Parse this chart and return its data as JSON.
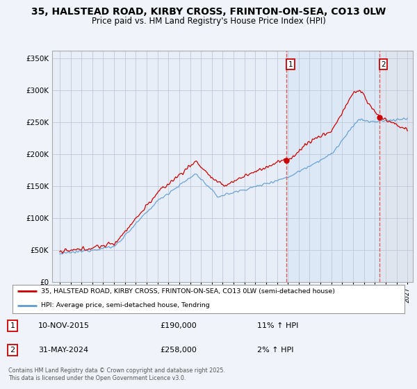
{
  "title": "35, HALSTEAD ROAD, KIRBY CROSS, FRINTON-ON-SEA, CO13 0LW",
  "subtitle": "Price paid vs. HM Land Registry's House Price Index (HPI)",
  "ytick_values": [
    0,
    50000,
    100000,
    150000,
    200000,
    250000,
    300000,
    350000
  ],
  "ylim": [
    0,
    360000
  ],
  "sale1_date": "10-NOV-2015",
  "sale1_price": 190000,
  "sale1_hpi": "11% ↑ HPI",
  "sale1_x": 2015.86,
  "sale1_label": "1",
  "sale2_date": "31-MAY-2024",
  "sale2_price": 258000,
  "sale2_hpi": "2% ↑ HPI",
  "sale2_x": 2024.42,
  "sale2_label": "2",
  "line_red_color": "#cc0000",
  "line_blue_color": "#5b9bd5",
  "vline_color": "#e06060",
  "shade_between_color": "#dce8f5",
  "hatch_color": "#cccccc",
  "legend_line1": "35, HALSTEAD ROAD, KIRBY CROSS, FRINTON-ON-SEA, CO13 0LW (semi-detached house)",
  "legend_line2": "HPI: Average price, semi-detached house, Tendring",
  "footer": "Contains HM Land Registry data © Crown copyright and database right 2025.\nThis data is licensed under the Open Government Licence v3.0.",
  "background_color": "#f0f4fa",
  "plot_bg_color": "#e8eef8",
  "grid_color": "#c0c8d8",
  "title_fontsize": 10,
  "subtitle_fontsize": 8.5
}
